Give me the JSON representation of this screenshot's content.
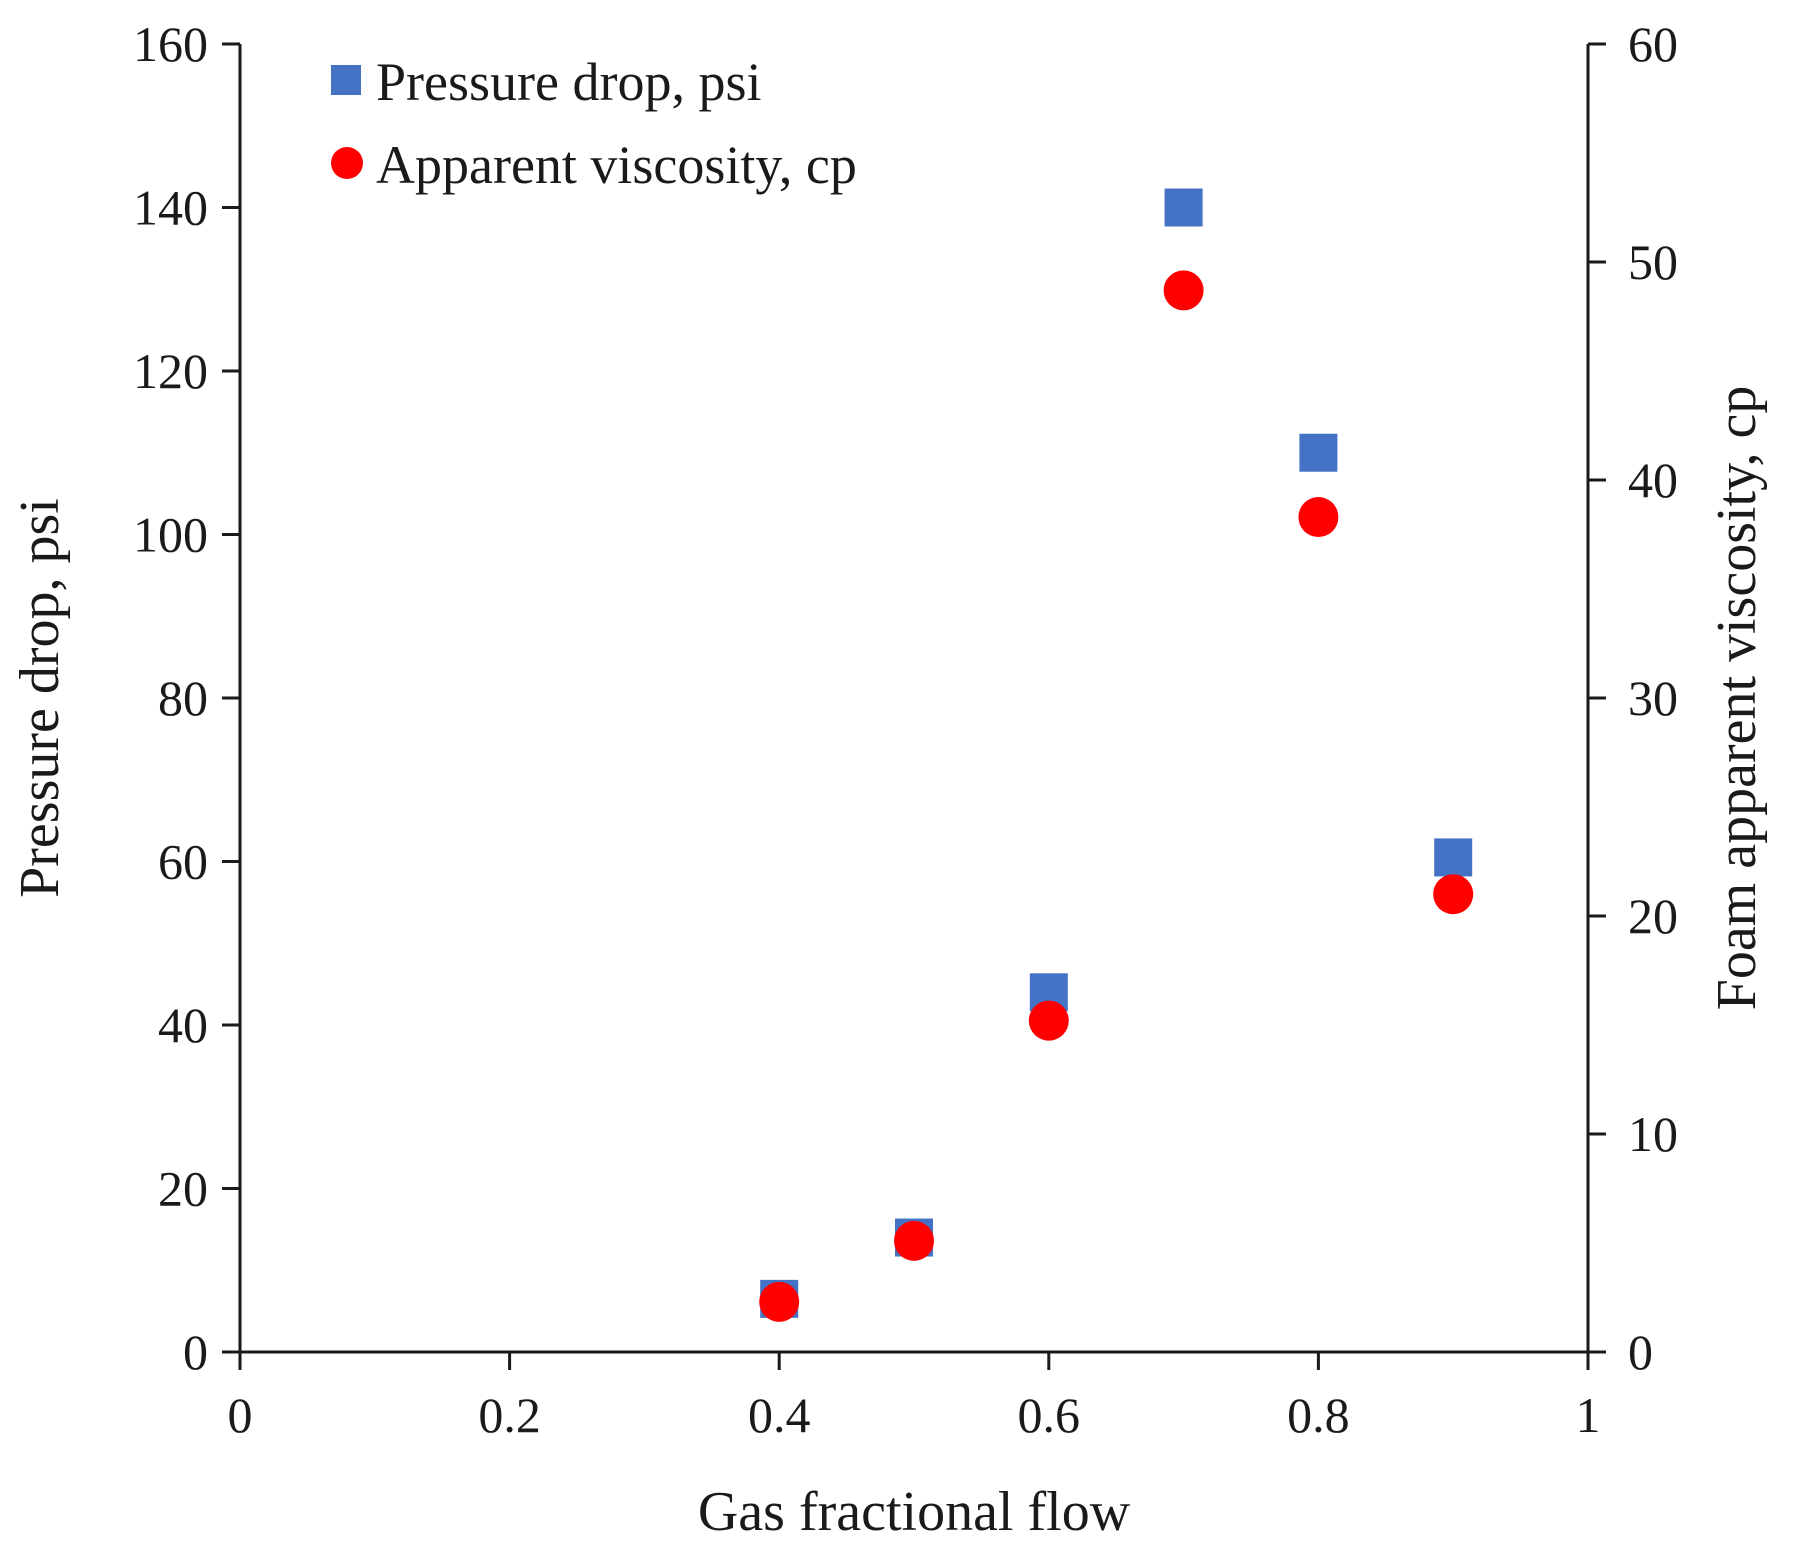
{
  "chart_data": {
    "type": "scatter",
    "title": "",
    "xlabel": "Gas fractional flow",
    "ylabel": "Pressure drop, psi",
    "y2label": "Foam apparent viscosity, cp",
    "xlim": [
      0,
      1
    ],
    "ylim": [
      0,
      160
    ],
    "y2lim": [
      0,
      60
    ],
    "x_ticks": [
      0,
      0.2,
      0.4,
      0.6,
      0.8,
      1
    ],
    "x_tick_labels": [
      "0",
      "0.2",
      "0.4",
      "0.6",
      "0.8",
      "1"
    ],
    "y_ticks": [
      0,
      20,
      40,
      60,
      80,
      100,
      120,
      140,
      160
    ],
    "y_tick_labels": [
      "0",
      "20",
      "40",
      "60",
      "80",
      "100",
      "120",
      "140",
      "160"
    ],
    "y2_ticks": [
      0,
      10,
      20,
      30,
      40,
      50,
      60
    ],
    "y2_tick_labels": [
      "0",
      "10",
      "20",
      "30",
      "40",
      "50",
      "60"
    ],
    "grid": false,
    "legend_position": "top-left",
    "series": [
      {
        "name": "Pressure drop, psi",
        "axis": "left",
        "marker": "square",
        "color": "#4472C4",
        "x": [
          0.4,
          0.5,
          0.6,
          0.7,
          0.8,
          0.9
        ],
        "y": [
          6.5,
          14,
          44,
          140,
          110,
          60.5
        ]
      },
      {
        "name": "Apparent viscosity, cp",
        "axis": "right",
        "marker": "circle",
        "color": "#FF0000",
        "x": [
          0.4,
          0.5,
          0.6,
          0.7,
          0.8,
          0.9
        ],
        "y": [
          2.3,
          5.1,
          15.2,
          48.7,
          38.3,
          21
        ]
      }
    ]
  }
}
